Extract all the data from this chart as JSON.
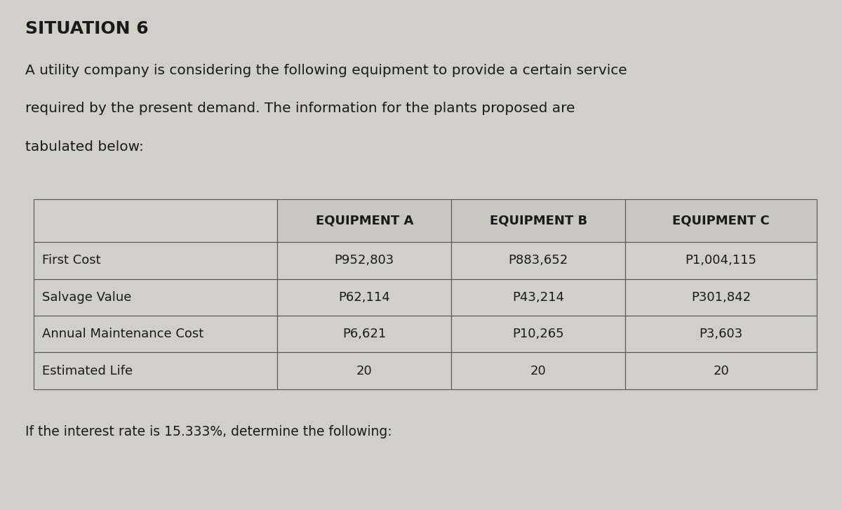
{
  "title": "SITUATION 6",
  "paragraph": "A utility company is considering the following equipment to provide a certain service\nrequired by the present demand. The information for the plants proposed are\ntabulated below:",
  "footer": "If the interest rate is 15.333%, determine the following:",
  "table": {
    "headers": [
      "",
      "EQUIPMENT A",
      "EQUIPMENT B",
      "EQUIPMENT C"
    ],
    "rows": [
      [
        "First Cost",
        "P952,803",
        "P883,652",
        "P1,004,115"
      ],
      [
        "Salvage Value",
        "P62,114",
        "P43,214",
        "P301,842"
      ],
      [
        "Annual Maintenance Cost",
        "P6,621",
        "P10,265",
        "P3,603"
      ],
      [
        "Estimated Life",
        "20",
        "20",
        "20"
      ]
    ]
  },
  "bg_color": "#d0cfc8",
  "table_bg": "#d0cfc8",
  "header_bg": "#c8c7c0",
  "cell_bg": "#d0cfc8",
  "text_color": "#1a1a1a",
  "border_color": "#555555",
  "title_fontsize": 18,
  "para_fontsize": 14.5,
  "table_header_fontsize": 13,
  "table_cell_fontsize": 13,
  "footer_fontsize": 13.5
}
